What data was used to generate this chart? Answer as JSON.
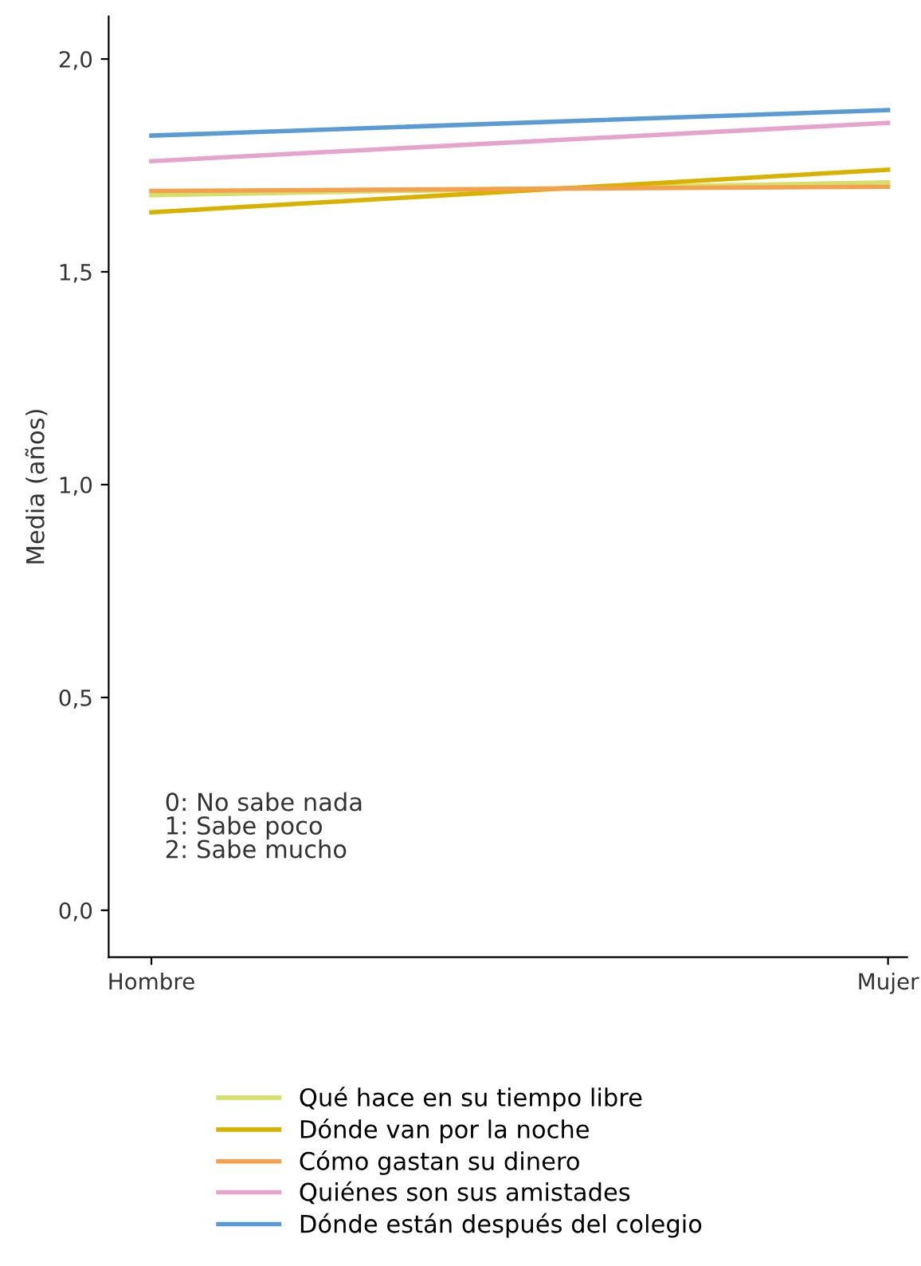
{
  "chart_data": {
    "type": "line",
    "ylabel": "Media (años)",
    "categories": [
      "Hombre",
      "Mujer"
    ],
    "series": [
      {
        "name": "Qué hace en su tiempo libre",
        "color": "#d4e06b",
        "values": [
          1.68,
          1.71
        ]
      },
      {
        "name": "Dónde van por la noche",
        "color": "#d9b200",
        "values": [
          1.64,
          1.74
        ]
      },
      {
        "name": "Cómo gastan su dinero",
        "color": "#f5a04c",
        "values": [
          1.69,
          1.7
        ]
      },
      {
        "name": "Quiénes son sus amistades",
        "color": "#e6a3cc",
        "values": [
          1.76,
          1.85
        ]
      },
      {
        "name": "Dónde están después del colegio",
        "color": "#5b9bd5",
        "values": [
          1.82,
          1.88
        ]
      }
    ],
    "ylim": [
      -0.11,
      2.1
    ],
    "yticks": [
      {
        "value": 0,
        "label": "0,0"
      },
      {
        "value": 0.5,
        "label": "0,5"
      },
      {
        "value": 1,
        "label": "1,0"
      },
      {
        "value": 1.5,
        "label": "1,5"
      },
      {
        "value": 2,
        "label": "2,0"
      }
    ],
    "annotations": [
      "0: No sabe nada\n1: Sabe poco\n2: Sabe mucho"
    ],
    "legend": "bottom",
    "grid": false,
    "marker": "none",
    "line_style": "solid"
  }
}
